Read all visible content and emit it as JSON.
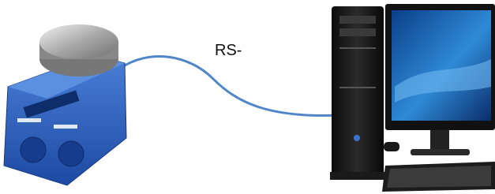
{
  "label": "RS-"
}
